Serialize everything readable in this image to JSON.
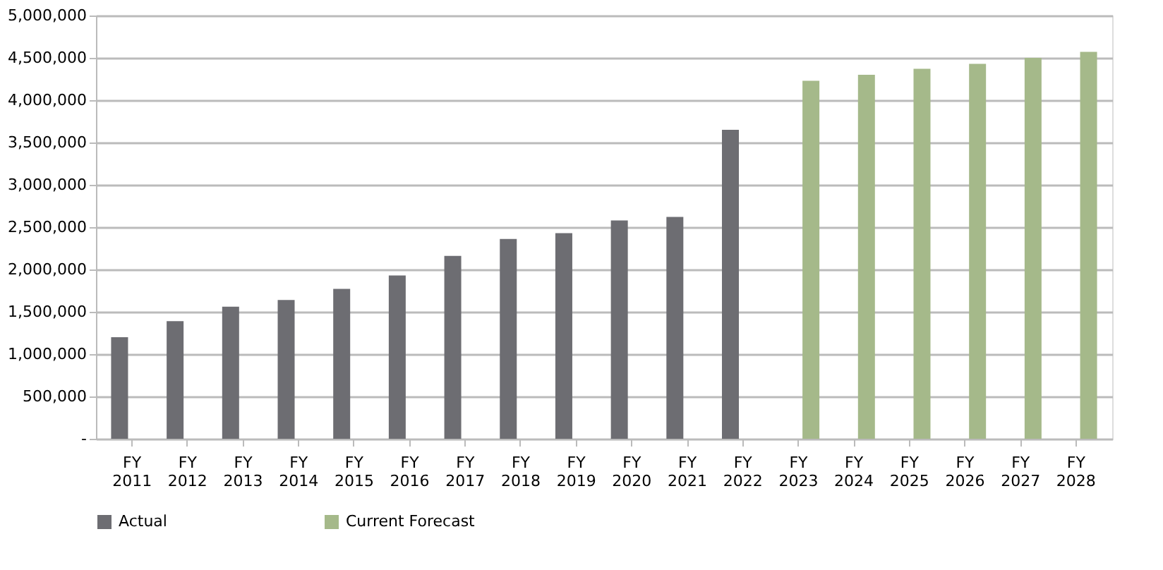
{
  "chart_data": {
    "type": "bar",
    "categories": [
      "FY 2011",
      "FY 2012",
      "FY 2013",
      "FY 2014",
      "FY 2015",
      "FY 2016",
      "FY 2017",
      "FY 2018",
      "FY 2019",
      "FY 2020",
      "FY 2021",
      "FY 2022",
      "FY 2023",
      "FY 2024",
      "FY 2025",
      "FY 2026",
      "FY 2027",
      "FY 2028"
    ],
    "series": [
      {
        "name": "Actual",
        "color": "#6d6d72",
        "values": [
          1200000,
          1390000,
          1560000,
          1640000,
          1770000,
          1930000,
          2160000,
          2360000,
          2430000,
          2580000,
          2620000,
          3650000,
          null,
          null,
          null,
          null,
          null,
          null
        ]
      },
      {
        "name": "Current Forecast",
        "color": "#a5b98a",
        "values": [
          0,
          0,
          0,
          0,
          0,
          0,
          0,
          0,
          0,
          0,
          0,
          0,
          4230000,
          4300000,
          4370000,
          4430000,
          4500000,
          4570000
        ]
      }
    ],
    "ylim": [
      0,
      5000000
    ],
    "yticks": [
      {
        "value": 0,
        "label": "-"
      },
      {
        "value": 500000,
        "label": "500,000"
      },
      {
        "value": 1000000,
        "label": "1,000,000"
      },
      {
        "value": 1500000,
        "label": "1,500,000"
      },
      {
        "value": 2000000,
        "label": "2,000,000"
      },
      {
        "value": 2500000,
        "label": "2,500,000"
      },
      {
        "value": 3000000,
        "label": "3,000,000"
      },
      {
        "value": 3500000,
        "label": "3,500,000"
      },
      {
        "value": 4000000,
        "label": "4,000,000"
      },
      {
        "value": 4500000,
        "label": "4,500,000"
      },
      {
        "value": 5000000,
        "label": "5,000,000"
      }
    ],
    "grid": "y",
    "legend": "bottom"
  }
}
